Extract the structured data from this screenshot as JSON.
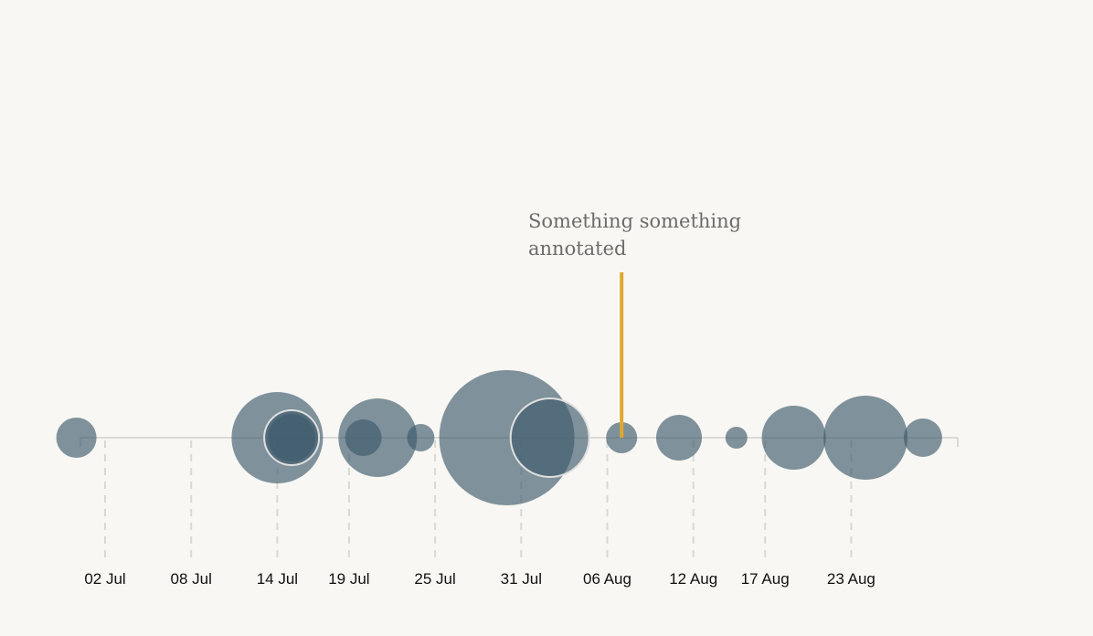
{
  "chart_data": {
    "type": "scatter",
    "x_axis": {
      "type": "date",
      "range": [
        "2023-06-27",
        "2023-08-29"
      ],
      "ticks": [
        {
          "date": "2023-07-02",
          "label": "02 Jul"
        },
        {
          "date": "2023-07-08",
          "label": "08 Jul"
        },
        {
          "date": "2023-07-14",
          "label": "14 Jul"
        },
        {
          "date": "2023-07-19",
          "label": "19 Jul"
        },
        {
          "date": "2023-07-25",
          "label": "25 Jul"
        },
        {
          "date": "2023-07-31",
          "label": "31 Jul"
        },
        {
          "date": "2023-08-06",
          "label": "06 Aug"
        },
        {
          "date": "2023-08-12",
          "label": "12 Aug"
        },
        {
          "date": "2023-08-17",
          "label": "17 Aug"
        },
        {
          "date": "2023-08-23",
          "label": "23 Aug"
        }
      ],
      "gridlines": "dashed"
    },
    "bubble_color": "#3d5a6b",
    "bubble_opacity": 0.65,
    "highlight_stroke": "#e0e0e0",
    "points": [
      {
        "date": "2023-06-30",
        "size": 22
      },
      {
        "date": "2023-07-14",
        "size": 50
      },
      {
        "date": "2023-07-15",
        "size": 26
      },
      {
        "date": "2023-07-15",
        "size": 30,
        "highlighted": true
      },
      {
        "date": "2023-07-21",
        "size": 43
      },
      {
        "date": "2023-07-20",
        "size": 20
      },
      {
        "date": "2023-07-24",
        "size": 15
      },
      {
        "date": "2023-07-30",
        "size": 74
      },
      {
        "date": "2023-08-02",
        "size": 43,
        "highlighted": true
      },
      {
        "date": "2023-08-07",
        "size": 17
      },
      {
        "date": "2023-08-11",
        "size": 25
      },
      {
        "date": "2023-08-15",
        "size": 12
      },
      {
        "date": "2023-08-19",
        "size": 35
      },
      {
        "date": "2023-08-24",
        "size": 46
      },
      {
        "date": "2023-08-28",
        "size": 21
      }
    ],
    "annotation": {
      "date": "2023-08-07",
      "lines": [
        "Something something",
        "annotated"
      ],
      "color": "#e0a82e"
    }
  }
}
